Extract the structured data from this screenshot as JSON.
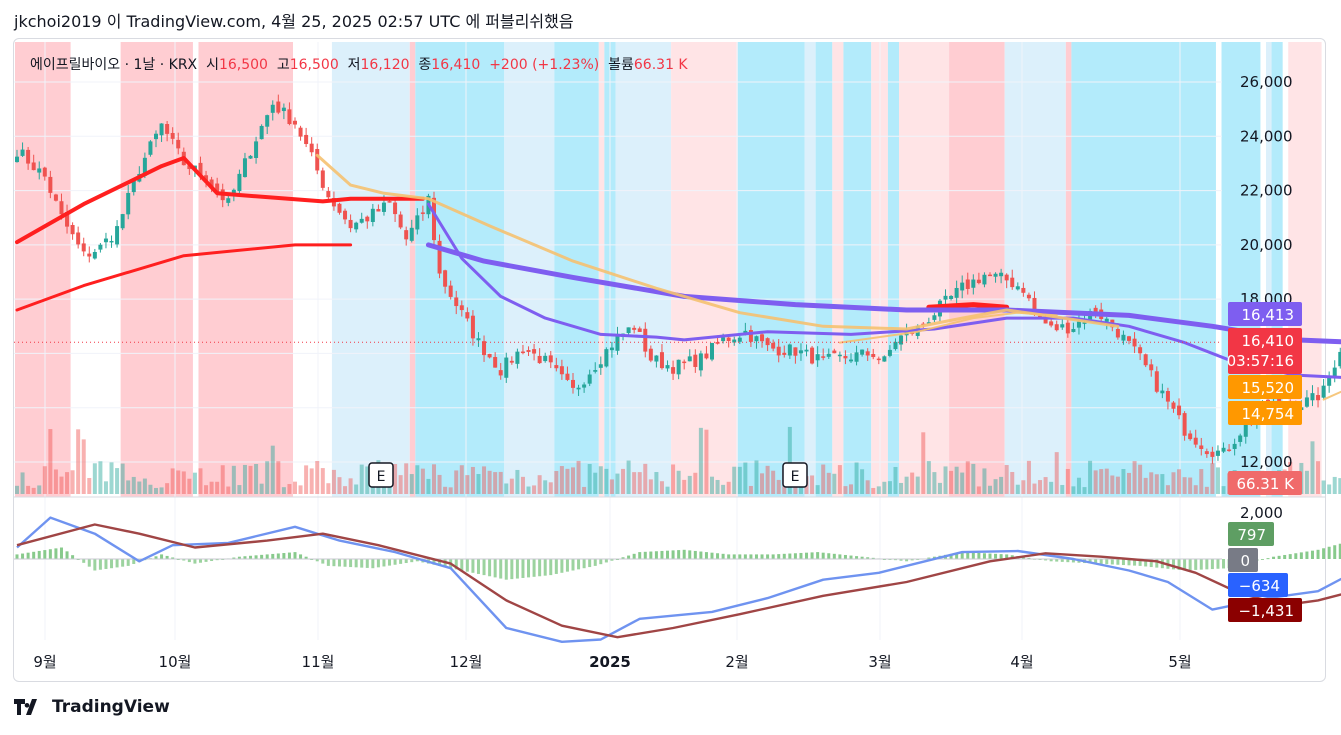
{
  "header": {
    "text": "jkchoi2019 이 TradingView.com, 4월 25, 2025 02:57 UTC 에 퍼블리쉬했음"
  },
  "legend": {
    "symbol": "에이프릴바이오 · 1날 · KRX",
    "open_label": "시",
    "open": "16,500",
    "high_label": "고",
    "high": "16,500",
    "low_label": "저",
    "low": "16,120",
    "close_label": "종",
    "close": "16,410",
    "change": "+200 (+1.23%)",
    "volume_label": "볼륨",
    "volume": "66.31 K"
  },
  "footer": {
    "brand": "TradingView"
  },
  "colors": {
    "up": "#26a69a",
    "down": "#ef5350",
    "ma_red": "#ff1f1f",
    "ma_purple": "#7e5ef0",
    "ma_orange": "#f5c170",
    "macd_line": "#6f93f0",
    "signal_line": "#a04545",
    "hist_up": "#7bc47f",
    "band_red": "#ffcdd2",
    "band_pink": "#ffe4e6",
    "band_sky": "#b3ebfb",
    "band_pale": "#dcf0fb"
  },
  "chart_data": [
    {
      "type": "candlestick",
      "title": "에이프릴바이오 · 1날 · KRX",
      "x_ticks": [
        "9월",
        "10월",
        "11월",
        "12월",
        "2025",
        "2월",
        "3월",
        "4월",
        "5월"
      ],
      "y_ticks": [
        "12,000",
        "14,000",
        "16,000",
        "18,000",
        "20,000",
        "22,000",
        "24,000",
        "26,000"
      ],
      "ylim": [
        11000,
        27000
      ],
      "grid": true,
      "earnings_markers": [
        "E",
        "E"
      ],
      "price_badges": [
        {
          "value": "16,413",
          "color": "#7e5ef0"
        },
        {
          "value": "16,410",
          "sub": "03:57:16",
          "color": "#f23645"
        },
        {
          "value": "15,520",
          "color": "#ff9800"
        },
        {
          "value": "14,754",
          "color": "#ff9800"
        },
        {
          "value": "66.31 K",
          "color": "#f06a6a"
        }
      ],
      "candle_path": [
        [
          0,
          23500
        ],
        [
          5,
          22500
        ],
        [
          8,
          21000
        ],
        [
          12,
          19600
        ],
        [
          15,
          19900
        ],
        [
          18,
          20600
        ],
        [
          22,
          22800
        ],
        [
          26,
          24400
        ],
        [
          30,
          23000
        ],
        [
          34,
          22500
        ],
        [
          38,
          21500
        ],
        [
          42,
          23500
        ],
        [
          46,
          25200
        ],
        [
          50,
          24500
        ],
        [
          53,
          23200
        ],
        [
          56,
          21800
        ],
        [
          60,
          20700
        ],
        [
          63,
          21000
        ],
        [
          67,
          21500
        ],
        [
          70,
          20200
        ],
        [
          73,
          21200
        ],
        [
          74,
          21700
        ],
        [
          76,
          18900
        ],
        [
          79,
          17800
        ],
        [
          83,
          16400
        ],
        [
          87,
          15400
        ],
        [
          91,
          16200
        ],
        [
          95,
          15700
        ],
        [
          100,
          14600
        ],
        [
          104,
          15600
        ],
        [
          108,
          16600
        ],
        [
          111,
          17000
        ],
        [
          114,
          15800
        ],
        [
          118,
          15500
        ],
        [
          123,
          15800
        ],
        [
          127,
          16500
        ],
        [
          131,
          16800
        ],
        [
          135,
          16200
        ],
        [
          140,
          16100
        ],
        [
          145,
          15700
        ],
        [
          150,
          15900
        ],
        [
          154,
          16000
        ],
        [
          156,
          15700
        ],
        [
          158,
          16500
        ],
        [
          162,
          16900
        ],
        [
          166,
          17700
        ],
        [
          170,
          18400
        ],
        [
          174,
          18900
        ],
        [
          178,
          18700
        ],
        [
          181,
          18400
        ],
        [
          183,
          17500
        ],
        [
          186,
          16900
        ],
        [
          190,
          17000
        ],
        [
          194,
          17600
        ],
        [
          198,
          16800
        ],
        [
          202,
          15800
        ],
        [
          206,
          14500
        ],
        [
          210,
          13200
        ],
        [
          214,
          12500
        ],
        [
          217,
          12300
        ],
        [
          221,
          13400
        ],
        [
          225,
          14200
        ],
        [
          229,
          14000
        ],
        [
          233,
          14300
        ],
        [
          235,
          14600
        ],
        [
          238,
          16200
        ],
        [
          240,
          16410
        ]
      ],
      "moving_averages": [
        {
          "color": "#ff1f1f",
          "points": [
            [
              0,
              20100
            ],
            [
              12,
              21500
            ],
            [
              26,
              22900
            ],
            [
              30,
              23200
            ],
            [
              36,
              21900
            ],
            [
              55,
              21600
            ],
            [
              60,
              21700
            ],
            [
              73,
              21700
            ]
          ]
        },
        {
          "color": "#ff1f1f",
          "points": [
            [
              0,
              17600
            ],
            [
              12,
              18500
            ],
            [
              30,
              19600
            ],
            [
              50,
              20000
            ],
            [
              60,
              20000
            ]
          ]
        },
        {
          "color": "#ff1f1f",
          "points": [
            [
              164,
              17700
            ],
            [
              172,
              17800
            ],
            [
              178,
              17700
            ]
          ]
        },
        {
          "color": "#7e5ef0",
          "points": [
            [
              74,
              20000
            ],
            [
              84,
              19400
            ],
            [
              100,
              18800
            ],
            [
              120,
              18100
            ],
            [
              140,
              17800
            ],
            [
              160,
              17600
            ],
            [
              178,
              17600
            ],
            [
              200,
              17400
            ],
            [
              215,
              17000
            ],
            [
              230,
              16500
            ],
            [
              240,
              16413
            ]
          ]
        },
        {
          "color": "#7e5ef0",
          "points": [
            [
              74,
              21500
            ],
            [
              80,
              19500
            ],
            [
              87,
              18100
            ],
            [
              95,
              17300
            ],
            [
              105,
              16700
            ],
            [
              115,
              16600
            ],
            [
              120,
              16500
            ],
            [
              135,
              16800
            ],
            [
              150,
              16700
            ],
            [
              165,
              16900
            ],
            [
              178,
              17300
            ],
            [
              190,
              17300
            ],
            [
              200,
              17000
            ],
            [
              210,
              16400
            ],
            [
              220,
              15600
            ],
            [
              230,
              15200
            ],
            [
              240,
              15100
            ]
          ]
        },
        {
          "color": "#f5c170",
          "points": [
            [
              54,
              23300
            ],
            [
              60,
              22200
            ],
            [
              66,
              21900
            ],
            [
              74,
              21700
            ],
            [
              85,
              20700
            ],
            [
              100,
              19400
            ],
            [
              115,
              18400
            ],
            [
              130,
              17500
            ],
            [
              145,
              17000
            ],
            [
              160,
              16900
            ],
            [
              170,
              17300
            ],
            [
              178,
              17600
            ],
            [
              185,
              17400
            ],
            [
              198,
              17000
            ]
          ]
        },
        {
          "color": "#f5c170",
          "points": [
            [
              148,
              16400
            ],
            [
              162,
              16800
            ],
            [
              172,
              17300
            ],
            [
              180,
              17500
            ],
            [
              187,
              17400
            ]
          ]
        },
        {
          "color": "#f5c170",
          "points": [
            [
              235,
              14300
            ],
            [
              240,
              14754
            ]
          ]
        }
      ],
      "background_bands": [
        {
          "from": 0,
          "to": 10,
          "color": "#ffcdd2"
        },
        {
          "from": 19,
          "to": 32,
          "color": "#ffcdd2"
        },
        {
          "from": 33,
          "to": 50,
          "color": "#ffcdd2"
        },
        {
          "from": 57,
          "to": 71,
          "color": "#dcf0fb"
        },
        {
          "from": 71,
          "to": 72,
          "color": "#ffcdd2"
        },
        {
          "from": 72,
          "to": 88,
          "color": "#b3ebfb"
        },
        {
          "from": 88,
          "to": 97,
          "color": "#dcf0fb"
        },
        {
          "from": 97,
          "to": 105,
          "color": "#b3ebfb"
        },
        {
          "from": 105,
          "to": 106,
          "color": "#ffe4e6"
        },
        {
          "from": 106,
          "to": 108,
          "color": "#b3ebfb"
        },
        {
          "from": 108,
          "to": 118,
          "color": "#dcf0fb"
        },
        {
          "from": 118,
          "to": 130,
          "color": "#ffe4e6"
        },
        {
          "from": 130,
          "to": 142,
          "color": "#b3ebfb"
        },
        {
          "from": 142,
          "to": 144,
          "color": "#dcf0fb"
        },
        {
          "from": 144,
          "to": 147,
          "color": "#b3ebfb"
        },
        {
          "from": 147,
          "to": 149,
          "color": "#ffe4e6"
        },
        {
          "from": 149,
          "to": 154,
          "color": "#b3ebfb"
        },
        {
          "from": 154,
          "to": 157,
          "color": "#ffe4e6"
        },
        {
          "from": 157,
          "to": 159,
          "color": "#b3ebfb"
        },
        {
          "from": 159,
          "to": 168,
          "color": "#ffe4e6"
        },
        {
          "from": 168,
          "to": 178,
          "color": "#ffcdd2"
        },
        {
          "from": 178,
          "to": 189,
          "color": "#dcf0fb"
        },
        {
          "from": 189,
          "to": 190,
          "color": "#ffcdd2"
        },
        {
          "from": 190,
          "to": 216,
          "color": "#b3ebfb"
        },
        {
          "from": 217,
          "to": 224,
          "color": "#b3ebfb"
        },
        {
          "from": 225,
          "to": 226,
          "color": "#dcf0fb"
        },
        {
          "from": 226,
          "to": 228,
          "color": "#b3ebfb"
        },
        {
          "from": 229,
          "to": 235,
          "color": "#ffe4e6"
        }
      ]
    },
    {
      "type": "line",
      "title": "MACD",
      "y_ticks": [
        "2,000"
      ],
      "badges": [
        {
          "value": "797",
          "color": "#5e9e63"
        },
        {
          "value": "0",
          "color": "#787b86"
        },
        {
          "value": "−634",
          "color": "#2962ff"
        },
        {
          "value": "−1,431",
          "color": "#8b0000"
        }
      ],
      "series": [
        {
          "color": "#6f93f0",
          "points": [
            [
              0,
              500
            ],
            [
              6,
              1800
            ],
            [
              14,
              1100
            ],
            [
              22,
              -100
            ],
            [
              28,
              600
            ],
            [
              38,
              700
            ],
            [
              50,
              1400
            ],
            [
              58,
              800
            ],
            [
              68,
              300
            ],
            [
              78,
              -400
            ],
            [
              88,
              -3000
            ],
            [
              98,
              -3600
            ],
            [
              105,
              -3500
            ],
            [
              112,
              -2600
            ],
            [
              125,
              -2300
            ],
            [
              135,
              -1700
            ],
            [
              145,
              -900
            ],
            [
              155,
              -600
            ],
            [
              170,
              300
            ],
            [
              180,
              350
            ],
            [
              190,
              0
            ],
            [
              200,
              -500
            ],
            [
              207,
              -1000
            ],
            [
              215,
              -2200
            ],
            [
              225,
              -1700
            ],
            [
              234,
              -1400
            ],
            [
              240,
              -634
            ]
          ]
        },
        {
          "color": "#a04545",
          "points": [
            [
              0,
              600
            ],
            [
              14,
              1500
            ],
            [
              22,
              1100
            ],
            [
              32,
              500
            ],
            [
              45,
              800
            ],
            [
              55,
              1100
            ],
            [
              65,
              600
            ],
            [
              78,
              -200
            ],
            [
              88,
              -1800
            ],
            [
              98,
              -2900
            ],
            [
              108,
              -3400
            ],
            [
              118,
              -3000
            ],
            [
              130,
              -2400
            ],
            [
              145,
              -1600
            ],
            [
              160,
              -1000
            ],
            [
              175,
              -100
            ],
            [
              185,
              250
            ],
            [
              195,
              100
            ],
            [
              205,
              -100
            ],
            [
              212,
              -600
            ],
            [
              220,
              -1500
            ],
            [
              228,
              -2000
            ],
            [
              234,
              -1800
            ],
            [
              240,
              -1431
            ]
          ]
        },
        {
          "color": "#7bc47f",
          "points": [
            [
              0,
              200
            ],
            [
              8,
              500
            ],
            [
              14,
              -500
            ],
            [
              20,
              -300
            ],
            [
              26,
              200
            ],
            [
              32,
              -200
            ],
            [
              40,
              100
            ],
            [
              50,
              300
            ],
            [
              56,
              -300
            ],
            [
              64,
              -400
            ],
            [
              72,
              -100
            ],
            [
              80,
              -500
            ],
            [
              88,
              -900
            ],
            [
              96,
              -700
            ],
            [
              104,
              -300
            ],
            [
              112,
              300
            ],
            [
              120,
              400
            ],
            [
              128,
              200
            ],
            [
              136,
              200
            ],
            [
              144,
              300
            ],
            [
              152,
              100
            ],
            [
              160,
              -100
            ],
            [
              170,
              300
            ],
            [
              178,
              200
            ],
            [
              186,
              -100
            ],
            [
              194,
              -200
            ],
            [
              202,
              -300
            ],
            [
              210,
              -500
            ],
            [
              218,
              -400
            ],
            [
              226,
              100
            ],
            [
              234,
              400
            ],
            [
              240,
              797
            ]
          ]
        }
      ],
      "ylim": [
        -3800,
        2300
      ]
    }
  ]
}
